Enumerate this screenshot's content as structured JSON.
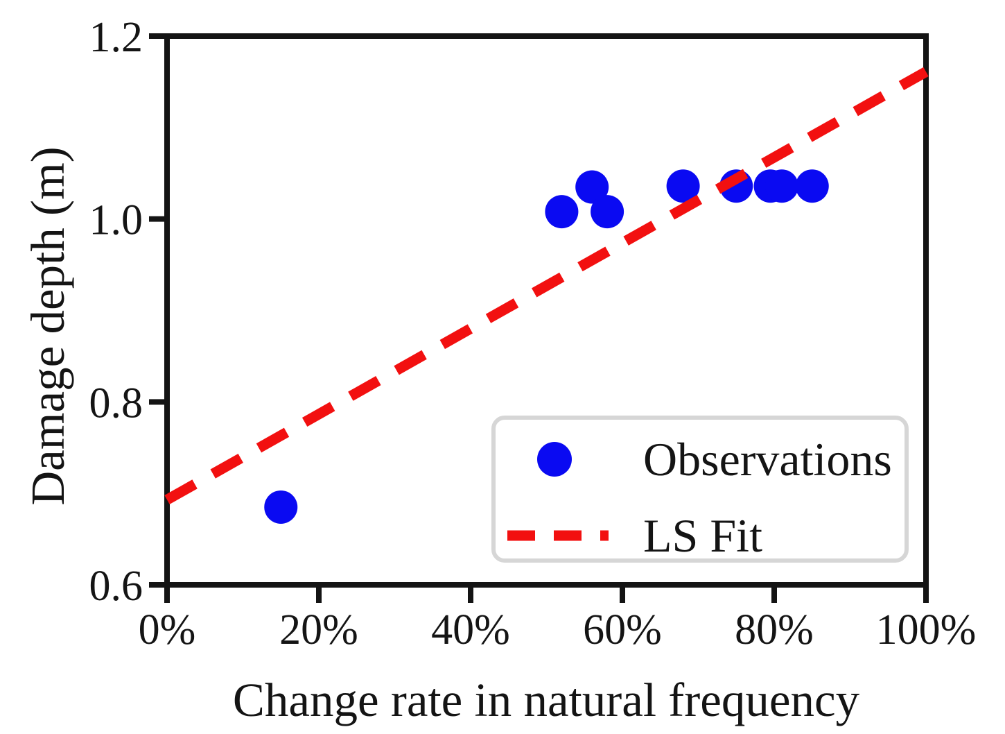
{
  "chart_data": {
    "type": "scatter",
    "title": "",
    "xlabel": "Change rate in natural frequency",
    "ylabel": "Damage depth (m)",
    "xlim": [
      0,
      100
    ],
    "ylim": [
      0.6,
      1.2
    ],
    "grid": false,
    "x_ticks": [
      {
        "value": 0,
        "label": "0%"
      },
      {
        "value": 20,
        "label": "20%"
      },
      {
        "value": 40,
        "label": "40%"
      },
      {
        "value": 60,
        "label": "60%"
      },
      {
        "value": 80,
        "label": "80%"
      },
      {
        "value": 100,
        "label": "100%"
      }
    ],
    "y_ticks": [
      {
        "value": 0.6,
        "label": "0.6"
      },
      {
        "value": 0.8,
        "label": "0.8"
      },
      {
        "value": 1.0,
        "label": "1.0"
      },
      {
        "value": 1.2,
        "label": "1.2"
      }
    ],
    "series": [
      {
        "name": "Observations",
        "type": "scatter",
        "marker": "circle",
        "color": "#0a0af2",
        "points": [
          {
            "x": 15,
            "y": 0.685
          },
          {
            "x": 52,
            "y": 1.008
          },
          {
            "x": 56,
            "y": 1.035
          },
          {
            "x": 58,
            "y": 1.008
          },
          {
            "x": 68,
            "y": 1.036
          },
          {
            "x": 75,
            "y": 1.036
          },
          {
            "x": 79.5,
            "y": 1.036
          },
          {
            "x": 81,
            "y": 1.036
          },
          {
            "x": 85,
            "y": 1.036
          }
        ]
      },
      {
        "name": "LS Fit",
        "type": "line",
        "style": "dashed",
        "color": "#f21010",
        "points": [
          {
            "x": 0,
            "y": 0.693
          },
          {
            "x": 100,
            "y": 1.161
          }
        ]
      }
    ],
    "legend": {
      "position": "lower-right",
      "items": [
        {
          "label": "Observations",
          "marker": "dot",
          "color": "#0a0af2"
        },
        {
          "label": "LS Fit",
          "marker": "dashed-line",
          "color": "#f21010"
        }
      ]
    }
  },
  "colors": {
    "observations": "#0a0af2",
    "fit_line": "#f21010",
    "axis": "#141414",
    "legend_border": "#d6d6d6",
    "background": "#ffffff"
  }
}
